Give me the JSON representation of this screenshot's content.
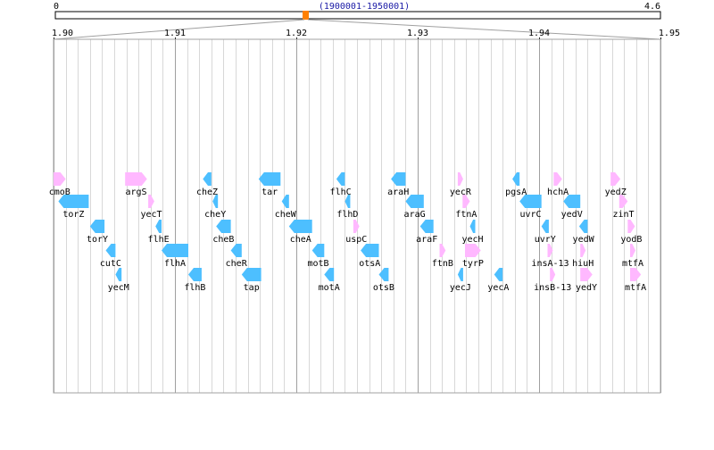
{
  "overview": {
    "start_label": "0",
    "end_label": "4.6",
    "range_label": "(1900001-1950001)",
    "genome_max_mb": 4.6,
    "window_start_mb": 1.900001,
    "window_end_mb": 1.950001,
    "marker_color": "#ff8000"
  },
  "detail": {
    "x_min": 1.9,
    "x_max": 1.95,
    "ticks": [
      "1.90",
      "1.91",
      "1.92",
      "1.93",
      "1.94",
      "1.95"
    ],
    "major_ticks": [
      1.9,
      1.91,
      1.92,
      1.93,
      1.94,
      1.95
    ],
    "minor_step": 0.001
  },
  "colors": {
    "forward_strand": "#ffb8ff",
    "reverse_strand": "#4dbfff",
    "grid_major": "#a0a0a0",
    "grid_minor": "#d8d8d8",
    "frame": "#a0a0a0"
  },
  "genes": [
    {
      "name": "cmoB",
      "start": 1.9,
      "end": 1.901,
      "strand": "+",
      "row": 0
    },
    {
      "name": "argS",
      "start": 1.9059,
      "end": 1.9077,
      "strand": "+",
      "row": 0
    },
    {
      "name": "cheZ",
      "start": 1.9123,
      "end": 1.913,
      "strand": "-",
      "row": 0
    },
    {
      "name": "tar",
      "start": 1.9169,
      "end": 1.9187,
      "strand": "-",
      "row": 0
    },
    {
      "name": "flhC",
      "start": 1.9233,
      "end": 1.924,
      "strand": "-",
      "row": 0
    },
    {
      "name": "araH",
      "start": 1.9278,
      "end": 1.929,
      "strand": "-",
      "row": 0
    },
    {
      "name": "yecR",
      "start": 1.9333,
      "end": 1.9337,
      "strand": "+",
      "row": 0
    },
    {
      "name": "pgsA",
      "start": 1.9378,
      "end": 1.9384,
      "strand": "-",
      "row": 0
    },
    {
      "name": "hchA",
      "start": 1.9412,
      "end": 1.9419,
      "strand": "+",
      "row": 0
    },
    {
      "name": "yedZ",
      "start": 1.9459,
      "end": 1.9467,
      "strand": "+",
      "row": 0
    },
    {
      "name": "torZ",
      "start": 1.9004,
      "end": 1.9029,
      "strand": "-",
      "row": 1
    },
    {
      "name": "yecT",
      "start": 1.9078,
      "end": 1.9083,
      "strand": "+",
      "row": 1
    },
    {
      "name": "cheY",
      "start": 1.9131,
      "end": 1.9135,
      "strand": "-",
      "row": 1
    },
    {
      "name": "cheW",
      "start": 1.9188,
      "end": 1.9194,
      "strand": "-",
      "row": 1
    },
    {
      "name": "flhD",
      "start": 1.924,
      "end": 1.9244,
      "strand": "-",
      "row": 1
    },
    {
      "name": "araG",
      "start": 1.929,
      "end": 1.9305,
      "strand": "-",
      "row": 1
    },
    {
      "name": "ftnA",
      "start": 1.9337,
      "end": 1.9343,
      "strand": "+",
      "row": 1
    },
    {
      "name": "uvrC",
      "start": 1.9384,
      "end": 1.9402,
      "strand": "-",
      "row": 1
    },
    {
      "name": "yedV",
      "start": 1.942,
      "end": 1.9434,
      "strand": "-",
      "row": 1
    },
    {
      "name": "zinT",
      "start": 1.9466,
      "end": 1.9473,
      "strand": "+",
      "row": 1
    },
    {
      "name": "torY",
      "start": 1.903,
      "end": 1.9042,
      "strand": "-",
      "row": 2
    },
    {
      "name": "flhE",
      "start": 1.9084,
      "end": 1.9089,
      "strand": "-",
      "row": 2
    },
    {
      "name": "cheB",
      "start": 1.9134,
      "end": 1.9146,
      "strand": "-",
      "row": 2
    },
    {
      "name": "cheA",
      "start": 1.9194,
      "end": 1.9213,
      "strand": "-",
      "row": 2
    },
    {
      "name": "uspC",
      "start": 1.9247,
      "end": 1.9252,
      "strand": "+",
      "row": 2
    },
    {
      "name": "araF",
      "start": 1.9302,
      "end": 1.9313,
      "strand": "-",
      "row": 2
    },
    {
      "name": "yecH",
      "start": 1.9343,
      "end": 1.9347,
      "strand": "-",
      "row": 2
    },
    {
      "name": "uvrY",
      "start": 1.9402,
      "end": 1.9408,
      "strand": "-",
      "row": 2
    },
    {
      "name": "yedW",
      "start": 1.9433,
      "end": 1.944,
      "strand": "-",
      "row": 2
    },
    {
      "name": "yodB",
      "start": 1.9473,
      "end": 1.9479,
      "strand": "+",
      "row": 2
    },
    {
      "name": "cutC",
      "start": 1.9043,
      "end": 1.9051,
      "strand": "-",
      "row": 3
    },
    {
      "name": "flhA",
      "start": 1.9089,
      "end": 1.9111,
      "strand": "-",
      "row": 3
    },
    {
      "name": "cheR",
      "start": 1.9146,
      "end": 1.9155,
      "strand": "-",
      "row": 3
    },
    {
      "name": "motB",
      "start": 1.9213,
      "end": 1.9223,
      "strand": "-",
      "row": 3
    },
    {
      "name": "otsA",
      "start": 1.9253,
      "end": 1.9268,
      "strand": "-",
      "row": 3
    },
    {
      "name": "ftnB",
      "start": 1.9318,
      "end": 1.9323,
      "strand": "+",
      "row": 3
    },
    {
      "name": "tyrP",
      "start": 1.9339,
      "end": 1.9352,
      "strand": "+",
      "row": 3
    },
    {
      "name": "insA-13",
      "start": 1.9407,
      "end": 1.9409,
      "strand": "+",
      "row": 3
    },
    {
      "name": "hiuH",
      "start": 1.9434,
      "end": 1.9438,
      "strand": "+",
      "row": 3
    },
    {
      "name": "mtfA",
      "start": 1.9475,
      "end": 1.9478,
      "strand": "+",
      "row": 3
    },
    {
      "name": "yecM",
      "start": 1.9051,
      "end": 1.9056,
      "strand": "-",
      "row": 4
    },
    {
      "name": "flhB",
      "start": 1.9111,
      "end": 1.9122,
      "strand": "-",
      "row": 4
    },
    {
      "name": "tap",
      "start": 1.9155,
      "end": 1.9171,
      "strand": "-",
      "row": 4
    },
    {
      "name": "motA",
      "start": 1.9223,
      "end": 1.9231,
      "strand": "-",
      "row": 4
    },
    {
      "name": "otsB",
      "start": 1.9268,
      "end": 1.9276,
      "strand": "-",
      "row": 4
    },
    {
      "name": "yecJ",
      "start": 1.9333,
      "end": 1.9336,
      "strand": "-",
      "row": 4
    },
    {
      "name": "yecA",
      "start": 1.9363,
      "end": 1.937,
      "strand": "-",
      "row": 4
    },
    {
      "name": "insB-13",
      "start": 1.9409,
      "end": 1.9413,
      "strand": "+",
      "row": 4
    },
    {
      "name": "yedY",
      "start": 1.9434,
      "end": 1.9444,
      "strand": "+",
      "row": 4
    },
    {
      "name": "mtfA",
      "start": 1.9475,
      "end": 1.9484,
      "strand": "+",
      "row": 4
    }
  ]
}
